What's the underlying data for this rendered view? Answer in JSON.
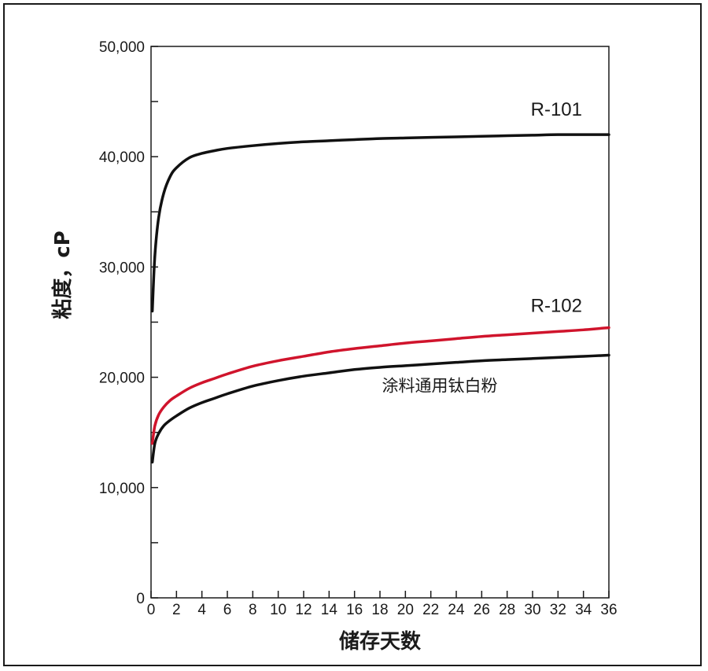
{
  "chart_data": {
    "type": "line",
    "title": "",
    "xlabel": "储存天数",
    "ylabel": "粘度，cP",
    "xlim": [
      0,
      36
    ],
    "ylim": [
      0,
      50000
    ],
    "x_ticks": [
      0,
      2,
      4,
      6,
      8,
      10,
      12,
      14,
      16,
      18,
      20,
      22,
      24,
      26,
      28,
      30,
      32,
      34,
      36
    ],
    "y_ticks": [
      0,
      10000,
      20000,
      30000,
      40000,
      50000
    ],
    "y_tick_labels": [
      "0",
      "10,000",
      "20,000",
      "30,000",
      "40,000",
      "50,000"
    ],
    "y_minor_ticks": [
      5000,
      15000,
      25000,
      35000,
      45000
    ],
    "grid": false,
    "series": [
      {
        "name": "R-101",
        "color": "#111111",
        "x": [
          0.1,
          0.3,
          0.6,
          1,
          1.5,
          2,
          3,
          4,
          5,
          6,
          8,
          10,
          12,
          14,
          16,
          18,
          20,
          22,
          24,
          26,
          28,
          30,
          32,
          34,
          36
        ],
        "y": [
          26000,
          31000,
          34500,
          36700,
          38200,
          39000,
          39900,
          40300,
          40550,
          40750,
          41000,
          41200,
          41350,
          41450,
          41550,
          41650,
          41700,
          41750,
          41800,
          41850,
          41900,
          41950,
          42000,
          42000,
          42000
        ]
      },
      {
        "name": "R-102",
        "color": "#d0142c",
        "x": [
          0.1,
          0.3,
          0.6,
          1,
          1.5,
          2,
          3,
          4,
          5,
          6,
          8,
          10,
          12,
          14,
          16,
          18,
          20,
          22,
          24,
          26,
          28,
          30,
          32,
          34,
          36
        ],
        "y": [
          14000,
          15600,
          16600,
          17300,
          17900,
          18300,
          19000,
          19500,
          19900,
          20300,
          21000,
          21500,
          21900,
          22300,
          22600,
          22850,
          23100,
          23300,
          23500,
          23700,
          23850,
          24000,
          24150,
          24300,
          24500
        ]
      },
      {
        "name": "涂料通用钛白粉",
        "color": "#111111",
        "x": [
          0.1,
          0.3,
          0.6,
          1,
          1.5,
          2,
          3,
          4,
          5,
          6,
          8,
          10,
          12,
          14,
          16,
          18,
          20,
          22,
          24,
          26,
          28,
          30,
          32,
          34,
          36
        ],
        "y": [
          12300,
          14000,
          14900,
          15600,
          16100,
          16500,
          17200,
          17700,
          18100,
          18500,
          19200,
          19700,
          20100,
          20400,
          20700,
          20900,
          21050,
          21200,
          21350,
          21500,
          21600,
          21700,
          21800,
          21900,
          22000
        ]
      }
    ]
  }
}
